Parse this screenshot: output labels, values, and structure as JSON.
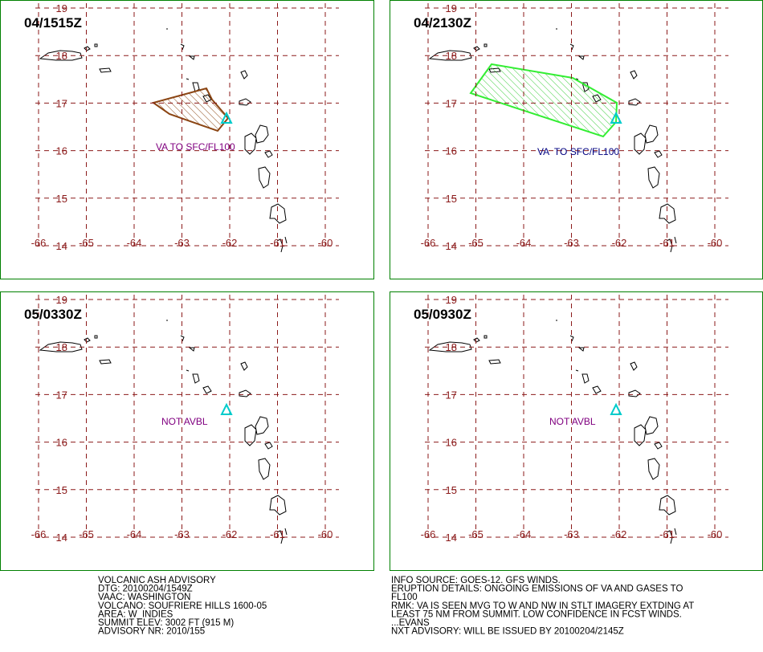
{
  "grid": {
    "lat_ticks": [
      19,
      18,
      17,
      16,
      15,
      14
    ],
    "lon_ticks": [
      -66,
      -65,
      -64,
      -63,
      -62,
      -61,
      -60
    ]
  },
  "panels": [
    {
      "time": "04/1515Z",
      "annotation": "VA TO SFC/FL100"
    },
    {
      "time": "04/2130Z",
      "annotation": "VA  TO SFC/FL100"
    },
    {
      "time": "05/0330Z",
      "annotation": "NOT AVBL"
    },
    {
      "time": "05/0930Z",
      "annotation": "NOT AVBL"
    }
  ],
  "advisory_left": [
    "VOLCANIC ASH ADVISORY",
    "DTG: 20100204/1549Z",
    "VAAC: WASHINGTON",
    "VOLCANO: SOUFRIERE HILLS 1600-05",
    "AREA: W_INDIES",
    "SUMMIT ELEV: 3002 FT (915 M)",
    "ADVISORY NR: 2010/155"
  ],
  "advisory_right": [
    "INFO SOURCE: GOES-12. GFS WINDS.",
    "ERUPTION DETAILS: ONGOING EMISSIONS OF VA AND GASES TO",
    "FL100",
    "RMK: VA IS SEEN MVG TO W AND NW IN STLT IMAGERY EXTDING AT",
    "LEAST 75 NM FROM SUMMIT. LOW CONFIDENCE IN FCST WINDS.",
    "...EVANS",
    "NXT ADVISORY: WILL BE ISSUED BY 20100204/2145Z"
  ]
}
